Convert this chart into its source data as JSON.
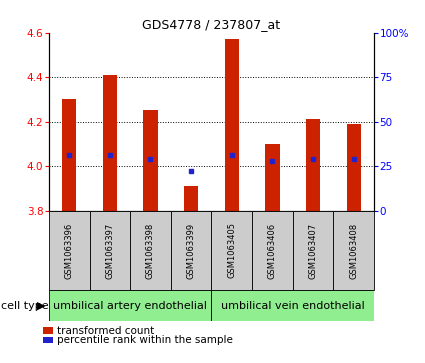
{
  "title": "GDS4778 / 237807_at",
  "samples": [
    "GSM1063396",
    "GSM1063397",
    "GSM1063398",
    "GSM1063399",
    "GSM1063405",
    "GSM1063406",
    "GSM1063407",
    "GSM1063408"
  ],
  "transformed_count": [
    4.3,
    4.41,
    4.25,
    3.91,
    4.57,
    4.1,
    4.21,
    4.19
  ],
  "percentile_rank_pct": [
    31,
    31,
    29,
    22,
    31,
    28,
    29,
    29
  ],
  "bar_bottom": 3.8,
  "ylim": [
    3.8,
    4.6
  ],
  "yticks_left": [
    3.8,
    4.0,
    4.2,
    4.4,
    4.6
  ],
  "yticks_right": [
    0,
    25,
    50,
    75,
    100
  ],
  "bar_color": "#cc2200",
  "dot_color": "#2222cc",
  "group1_label": "umbilical artery endothelial",
  "group2_label": "umbilical vein endothelial",
  "group1_count": 4,
  "group2_count": 4,
  "cell_type_label": "cell type",
  "legend_bar_label": "transformed count",
  "legend_dot_label": "percentile rank within the sample",
  "group_bg_color": "#90ee90",
  "sample_bg_color": "#cccccc",
  "bar_width": 0.35,
  "title_fontsize": 9,
  "tick_fontsize": 7.5,
  "sample_fontsize": 6.0,
  "group_fontsize": 8.0,
  "legend_fontsize": 7.5,
  "cell_type_fontsize": 8.0
}
